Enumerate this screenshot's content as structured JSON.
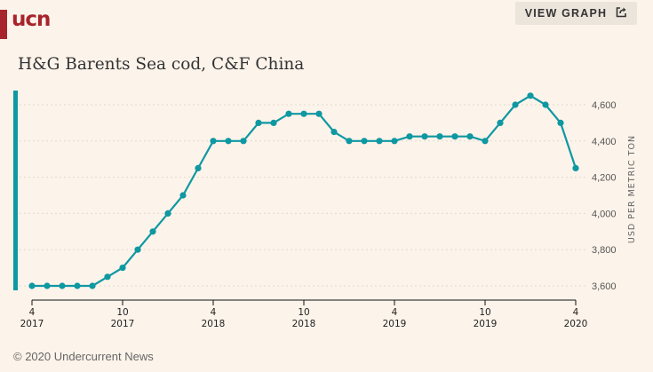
{
  "brand": {
    "logo": "ucn",
    "color": "#a8242c"
  },
  "header": {
    "view_graph_label": "VIEW GRAPH",
    "view_graph_icon": "external-link-icon"
  },
  "footer": {
    "copyright": "© 2020 Undercurrent News"
  },
  "colors": {
    "series": "#0e98a2",
    "background": "#fcf3ea"
  },
  "chart_data": {
    "type": "line",
    "title": "H&G Barents Sea cod, C&F China",
    "xlabel": "",
    "ylabel": "USD PER METRIC TON",
    "ylim": [
      3550,
      4700
    ],
    "y_ticks": [
      3600,
      3800,
      4000,
      4200,
      4400,
      4600
    ],
    "y_tick_labels": [
      "3,600",
      "3,800",
      "4,000",
      "4,200",
      "4,400",
      "4,600"
    ],
    "y_axis_position": "right",
    "grid": "horizontal-dotted",
    "x_ticks": [
      {
        "index": 0,
        "month": "4",
        "year": "2017"
      },
      {
        "index": 6,
        "month": "10",
        "year": "2017"
      },
      {
        "index": 12,
        "month": "4",
        "year": "2018"
      },
      {
        "index": 18,
        "month": "10",
        "year": "2018"
      },
      {
        "index": 24,
        "month": "4",
        "year": "2019"
      },
      {
        "index": 30,
        "month": "10",
        "year": "2019"
      },
      {
        "index": 36,
        "month": "4",
        "year": "2020"
      }
    ],
    "x": [
      "2017-04",
      "2017-05",
      "2017-06",
      "2017-07",
      "2017-08",
      "2017-09",
      "2017-10",
      "2017-11",
      "2017-12",
      "2018-01",
      "2018-02",
      "2018-03",
      "2018-04",
      "2018-05",
      "2018-06",
      "2018-07",
      "2018-08",
      "2018-09",
      "2018-10",
      "2018-11",
      "2018-12",
      "2019-01",
      "2019-02",
      "2019-03",
      "2019-04",
      "2019-05",
      "2019-06",
      "2019-07",
      "2019-08",
      "2019-09",
      "2019-10",
      "2019-11",
      "2019-12",
      "2020-01",
      "2020-02",
      "2020-03",
      "2020-04"
    ],
    "series": [
      {
        "name": "H&G Barents Sea cod, C&F China",
        "values": [
          3600,
          3600,
          3600,
          3600,
          3600,
          3650,
          3700,
          3800,
          3900,
          4000,
          4100,
          4250,
          4400,
          4400,
          4400,
          4500,
          4500,
          4550,
          4550,
          4550,
          4450,
          4400,
          4400,
          4400,
          4400,
          4425,
          4425,
          4425,
          4425,
          4425,
          4400,
          4500,
          4600,
          4650,
          4600,
          4500,
          4250
        ]
      }
    ]
  }
}
